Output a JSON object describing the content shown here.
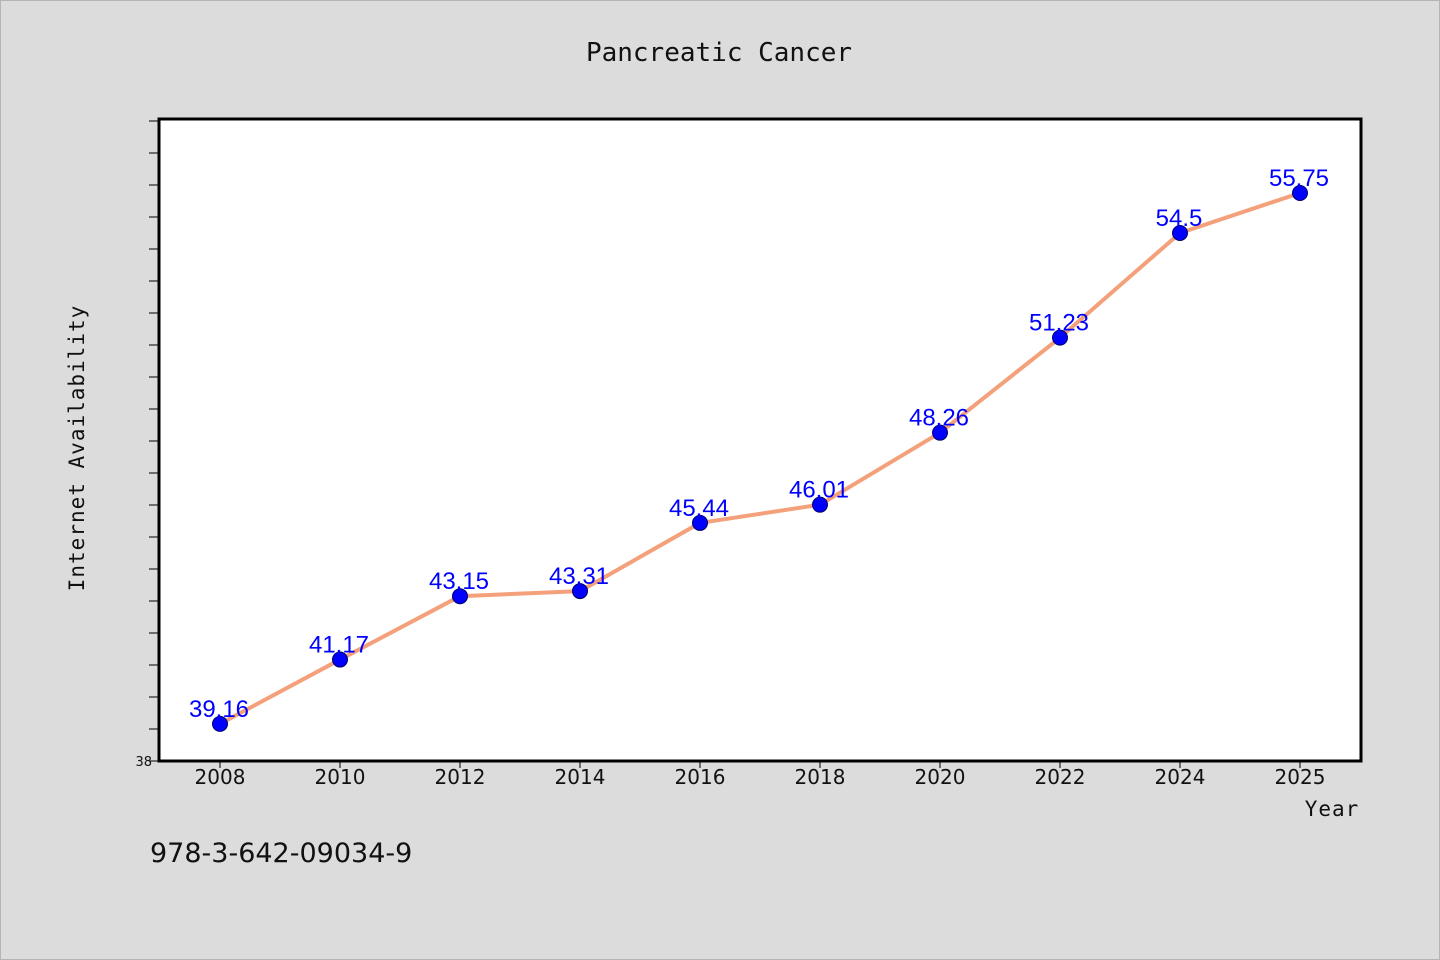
{
  "chart_data": {
    "type": "line",
    "title": "Pancreatic Cancer",
    "xlabel": "Year",
    "ylabel": "Internet Availability",
    "categories": [
      "2008",
      "2010",
      "2012",
      "2014",
      "2016",
      "2018",
      "2020",
      "2022",
      "2024",
      "2025"
    ],
    "series": [
      {
        "values": [
          39.16,
          41.17,
          43.15,
          43.31,
          45.44,
          46.01,
          48.26,
          51.23,
          54.5,
          55.75
        ],
        "labels": [
          "39.16",
          "41.17",
          "43.15",
          "43.31",
          "45.44",
          "46.01",
          "48.26",
          "51.23",
          "54.5",
          "55.75"
        ],
        "line_color": "#f4a07a",
        "marker_color": "#0000ff"
      }
    ],
    "ylim": [
      38,
      58
    ],
    "y_tick_labels": [
      "38"
    ],
    "grid": false,
    "legend": "none"
  },
  "footer": {
    "isbn": "978-3-642-09034-9"
  }
}
